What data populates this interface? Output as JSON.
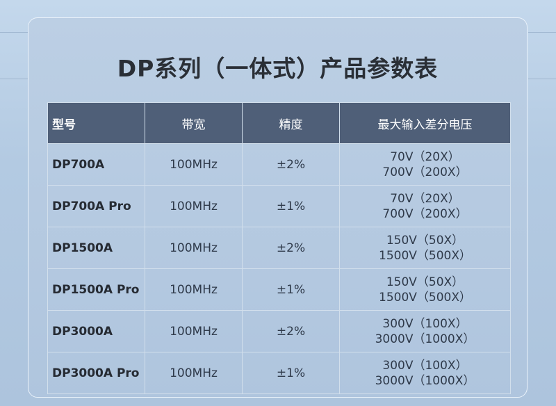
{
  "title": "DP系列（一体式）产品参数表",
  "headers": {
    "model": "型号",
    "bandwidth": "带宽",
    "accuracy": "精度",
    "max_voltage": "最大输入差分电压"
  },
  "rows": [
    {
      "model": "DP700A",
      "bandwidth": "100MHz",
      "accuracy": "±2%",
      "v1": "70V（20X）",
      "v2": "700V（200X）"
    },
    {
      "model": "DP700A Pro",
      "bandwidth": "100MHz",
      "accuracy": "±1%",
      "v1": "70V（20X）",
      "v2": "700V（200X）"
    },
    {
      "model": "DP1500A",
      "bandwidth": "100MHz",
      "accuracy": "±2%",
      "v1": "150V（50X）",
      "v2": "1500V（500X）"
    },
    {
      "model": "DP1500A Pro",
      "bandwidth": "100MHz",
      "accuracy": "±1%",
      "v1": "150V（50X）",
      "v2": "1500V（500X）"
    },
    {
      "model": "DP3000A",
      "bandwidth": "100MHz",
      "accuracy": "±2%",
      "v1": "300V（100X）",
      "v2": "3000V（1000X）"
    },
    {
      "model": "DP3000A Pro",
      "bandwidth": "100MHz",
      "accuracy": "±1%",
      "v1": "300V（100X）",
      "v2": "3000V（1000X）"
    }
  ]
}
